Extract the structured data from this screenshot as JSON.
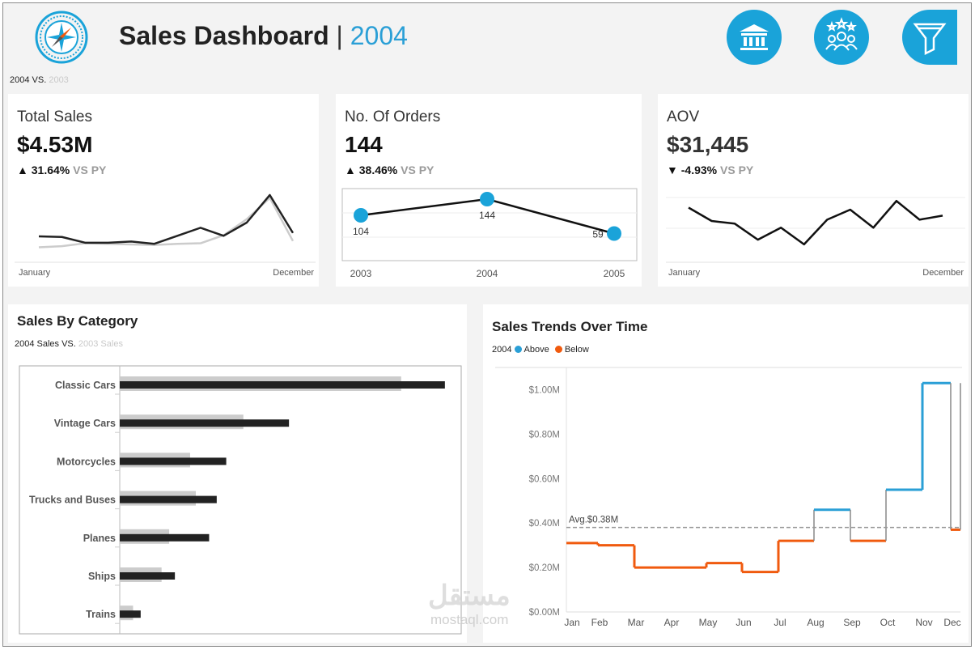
{
  "header": {
    "title": "Sales Dashboard",
    "separator": "|",
    "year": "2004",
    "compare_current": "2004 VS.",
    "compare_previous": "2003",
    "icons": [
      "compass-logo-icon",
      "bank-icon",
      "customers-icon",
      "filter-icon"
    ]
  },
  "colors": {
    "accent": "#1aa3d9",
    "above": "#2a9fd6",
    "below": "#f05a0e",
    "current": "#222222",
    "previous": "#cccccc"
  },
  "kpis": {
    "total_sales": {
      "title": "Total Sales",
      "value": "$4.53M",
      "arrow": "▲",
      "delta": "31.64%",
      "vs": "VS PY",
      "start_label": "January",
      "end_label": "December"
    },
    "orders": {
      "title": "No. Of Orders",
      "value": "144",
      "arrow": "▲",
      "delta": "38.46%",
      "vs": "VS PY"
    },
    "aov": {
      "title": "AOV",
      "value": "$31,445",
      "arrow": "▼",
      "delta": "-4.93%",
      "vs": "VS PY",
      "start_label": "January",
      "end_label": "December"
    }
  },
  "category": {
    "title": "Sales By Category",
    "legend_current": "2004 Sales VS.",
    "legend_previous": "2003 Sales"
  },
  "trend": {
    "title": "Sales Trends Over Time",
    "legend_year": "2004",
    "legend_above": "Above",
    "legend_below": "Below",
    "avg_label": "Avg.$0.38M"
  },
  "watermark": {
    "arabic": "مستقل",
    "latin": "mostaql.com"
  },
  "chart_data": [
    {
      "type": "line",
      "id": "total_sales_sparkline",
      "x": [
        "Jan",
        "Feb",
        "Mar",
        "Apr",
        "May",
        "Jun",
        "Jul",
        "Aug",
        "Sep",
        "Oct",
        "Nov",
        "Dec"
      ],
      "series": [
        {
          "name": "2004",
          "values": [
            0.31,
            0.3,
            0.2,
            0.2,
            0.22,
            0.18,
            0.32,
            0.46,
            0.32,
            0.55,
            1.03,
            0.37
          ]
        },
        {
          "name": "2003",
          "values": [
            0.12,
            0.14,
            0.19,
            0.18,
            0.17,
            0.16,
            0.18,
            0.19,
            0.33,
            0.61,
            0.98,
            0.23
          ]
        }
      ],
      "xlabel": "",
      "ylabel": "",
      "grid": false
    },
    {
      "type": "line",
      "id": "orders_by_year",
      "x": [
        "2003",
        "2004",
        "2005"
      ],
      "values": [
        104,
        144,
        59
      ],
      "data_labels": [
        "104",
        "144",
        "59"
      ],
      "markers": true,
      "ylim": [
        0,
        170
      ]
    },
    {
      "type": "line",
      "id": "aov_sparkline",
      "x": [
        "Jan",
        "Feb",
        "Mar",
        "Apr",
        "May",
        "Jun",
        "Jul",
        "Aug",
        "Sep",
        "Oct",
        "Nov",
        "Dec"
      ],
      "values": [
        33000,
        31000,
        30600,
        28200,
        30000,
        27500,
        31200,
        32700,
        30000,
        34000,
        31200,
        31800
      ],
      "grid": true
    },
    {
      "type": "bar",
      "id": "sales_by_category",
      "orientation": "horizontal",
      "categories": [
        "Classic Cars",
        "Vintage Cars",
        "Motorcycles",
        "Trucks and Buses",
        "Planes",
        "Ships",
        "Trains"
      ],
      "series": [
        {
          "name": "2003 Sales",
          "values": [
            1.48,
            0.65,
            0.37,
            0.4,
            0.26,
            0.22,
            0.07
          ]
        },
        {
          "name": "2004 Sales",
          "values": [
            1.71,
            0.89,
            0.56,
            0.51,
            0.47,
            0.29,
            0.11
          ]
        }
      ],
      "legend": "top-left"
    },
    {
      "type": "line",
      "id": "sales_trends",
      "step": true,
      "x": [
        "Jan",
        "Feb",
        "Mar",
        "Apr",
        "May",
        "Jun",
        "Jul",
        "Aug",
        "Sep",
        "Oct",
        "Nov",
        "Dec"
      ],
      "values": [
        0.31,
        0.3,
        0.2,
        0.2,
        0.22,
        0.18,
        0.32,
        0.46,
        0.32,
        0.55,
        1.03,
        0.37
      ],
      "y_ticks": [
        "$0.00M",
        "$0.20M",
        "$0.40M",
        "$0.60M",
        "$0.80M",
        "$1.00M"
      ],
      "ylim": [
        0,
        1.1
      ],
      "average": 0.38,
      "legend": "top-left",
      "grid": false
    }
  ]
}
